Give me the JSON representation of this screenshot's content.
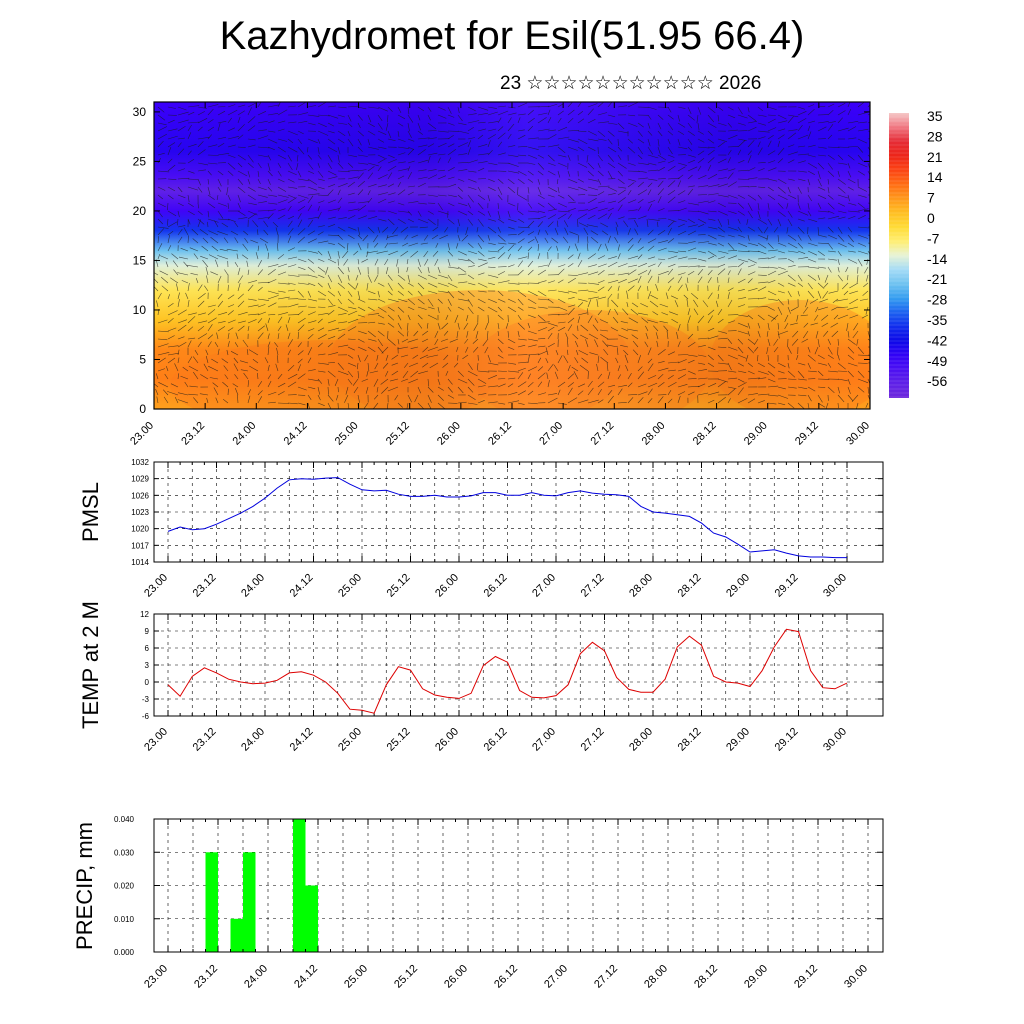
{
  "title": "Kazhydromet for Esil(51.95 66.4)",
  "subtitle": "23 ☆☆☆☆☆☆☆☆☆☆☆ 2026",
  "colors": {
    "pmsl_line": "#0000dd",
    "temp_line": "#dd0000",
    "precip_bar": "#00ff00"
  },
  "chart_data": [
    {
      "type": "heatmap",
      "name": "temperature-wind-cross-section",
      "x_ticks": [
        "23.00",
        "23.12",
        "24.00",
        "24.12",
        "25.00",
        "25.12",
        "26.00",
        "26.12",
        "27.00",
        "27.12",
        "28.00",
        "28.12",
        "29.00",
        "29.12",
        "30.00"
      ],
      "y_ticks": [
        "0",
        "5",
        "10",
        "15",
        "20",
        "25",
        "30"
      ],
      "ylim": [
        0,
        31
      ],
      "colorbar_labels": [
        "35",
        "28",
        "21",
        "14",
        "7",
        "0",
        "-7",
        "-14",
        "-21",
        "-28",
        "-35",
        "-42",
        "-49",
        "-56"
      ],
      "colorbar_range": [
        -63,
        40
      ],
      "profile": [
        {
          "level": 0,
          "value": 8
        },
        {
          "level": 3,
          "value": 12
        },
        {
          "level": 6,
          "value": 11
        },
        {
          "level": 9,
          "value": 3
        },
        {
          "level": 12,
          "value": -4
        },
        {
          "level": 14.5,
          "value": -12
        },
        {
          "level": 16,
          "value": -22
        },
        {
          "level": 18,
          "value": -36
        },
        {
          "level": 20,
          "value": -50
        },
        {
          "level": 22,
          "value": -58
        },
        {
          "level": 23.5,
          "value": -52
        },
        {
          "level": 26,
          "value": -46
        },
        {
          "level": 28,
          "value": -47
        },
        {
          "level": 31,
          "value": -49
        }
      ]
    },
    {
      "type": "line",
      "name": "PMSL",
      "ylabel": "PMSL",
      "x_ticks": [
        "23.00",
        "23.12",
        "24.00",
        "24.12",
        "25.00",
        "25.12",
        "26.00",
        "26.12",
        "27.00",
        "27.12",
        "28.00",
        "28.12",
        "29.00",
        "29.12",
        "30.00"
      ],
      "y_ticks": [
        "1014",
        "1017",
        "1020",
        "1023",
        "1026",
        "1029",
        "1032"
      ],
      "ylim": [
        1014,
        1032
      ],
      "x": [
        0,
        3,
        6,
        9,
        12,
        15,
        18,
        21,
        24,
        27,
        30,
        33,
        36,
        39,
        42,
        45,
        48,
        51,
        54,
        57,
        60,
        63,
        66,
        69,
        72,
        75,
        78,
        81,
        84,
        87,
        90,
        93,
        96,
        99,
        102,
        105,
        108,
        111,
        114,
        117,
        120,
        123,
        126,
        129,
        132,
        135,
        138,
        141,
        144,
        147,
        150,
        153,
        156,
        159,
        162,
        165,
        168
      ],
      "values": [
        1019.5,
        1020.3,
        1019.8,
        1020,
        1020.8,
        1021.8,
        1022.8,
        1024,
        1025.5,
        1027.3,
        1028.8,
        1029,
        1028.9,
        1029.1,
        1029.2,
        1028,
        1027,
        1026.8,
        1026.9,
        1026.2,
        1025.8,
        1025.8,
        1026,
        1025.7,
        1025.7,
        1025.9,
        1026.5,
        1026.5,
        1026,
        1026,
        1026.5,
        1026,
        1025.9,
        1026.5,
        1026.8,
        1026.4,
        1026.2,
        1026.1,
        1025.8,
        1024,
        1023,
        1022.8,
        1022.5,
        1022.2,
        1021,
        1019.2,
        1018.5,
        1017.2,
        1015.8,
        1016,
        1016.2,
        1015.6,
        1015.1,
        1014.9,
        1014.9,
        1014.8,
        1014.8
      ]
    },
    {
      "type": "line",
      "name": "TEMP at 2 M",
      "ylabel": "TEMP at 2 M",
      "x_ticks": [
        "23.00",
        "23.12",
        "24.00",
        "24.12",
        "25.00",
        "25.12",
        "26.00",
        "26.12",
        "27.00",
        "27.12",
        "28.00",
        "28.12",
        "29.00",
        "29.12",
        "30.00"
      ],
      "y_ticks": [
        "-6",
        "-3",
        "0",
        "3",
        "6",
        "9",
        "12"
      ],
      "ylim": [
        -6,
        12
      ],
      "x": [
        0,
        3,
        6,
        9,
        12,
        15,
        18,
        21,
        24,
        27,
        30,
        33,
        36,
        39,
        42,
        45,
        48,
        51,
        54,
        57,
        60,
        63,
        66,
        69,
        72,
        75,
        78,
        81,
        84,
        87,
        90,
        93,
        96,
        99,
        102,
        105,
        108,
        111,
        114,
        117,
        120,
        123,
        126,
        129,
        132,
        135,
        138,
        141,
        144,
        147,
        150,
        153,
        156,
        159,
        162,
        165,
        168
      ],
      "values": [
        -0.5,
        -2.5,
        1,
        2.5,
        1.6,
        0.5,
        0,
        -0.3,
        -0.2,
        0.3,
        1.6,
        1.8,
        1.2,
        0,
        -2,
        -4.8,
        -5,
        -5.5,
        -0.5,
        2.7,
        2.1,
        -1.2,
        -2.3,
        -2.7,
        -2.9,
        -2,
        2.9,
        4.5,
        3.5,
        -1.5,
        -2.7,
        -2.8,
        -2.4,
        -0.5,
        5,
        7,
        5.5,
        0.8,
        -1.3,
        -1.8,
        -1.8,
        0.5,
        6.2,
        8.1,
        6.5,
        1,
        0,
        -0.2,
        -0.8,
        2,
        6.2,
        9.3,
        8.9,
        2,
        -1,
        -1.2,
        -0.2
      ]
    },
    {
      "type": "bar",
      "name": "PRECIP",
      "ylabel": "PRECIP, mm",
      "x_ticks": [
        "23.00",
        "23.12",
        "24.00",
        "24.12",
        "25.00",
        "25.12",
        "26.00",
        "26.12",
        "27.00",
        "27.12",
        "28.00",
        "28.12",
        "29.00",
        "29.12",
        "30.00"
      ],
      "y_ticks": [
        "0.000",
        "0.010",
        "0.020",
        "0.030",
        "0.040"
      ],
      "ylim": [
        0,
        0.04
      ],
      "bars": [
        {
          "x_start": 9,
          "x_end": 12,
          "value": 0.03
        },
        {
          "x_start": 15,
          "x_end": 18,
          "value": 0.01
        },
        {
          "x_start": 18,
          "x_end": 21,
          "value": 0.03
        },
        {
          "x_start": 30,
          "x_end": 33,
          "value": 0.04
        },
        {
          "x_start": 33,
          "x_end": 36,
          "value": 0.02
        }
      ]
    }
  ]
}
